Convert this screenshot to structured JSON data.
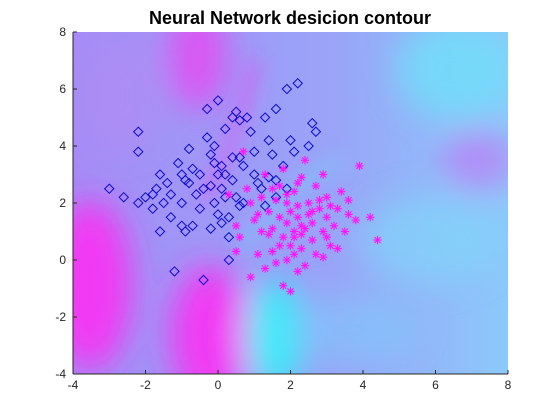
{
  "chart_data": {
    "type": "scatter",
    "title": "Neural Network desicion contour",
    "xlabel": "",
    "ylabel": "",
    "xlim": [
      -4,
      8
    ],
    "ylim": [
      -4,
      8
    ],
    "xticks": [
      "-4",
      "-2",
      "0",
      "2",
      "4",
      "6",
      "8"
    ],
    "yticks": [
      "-4",
      "-2",
      "0",
      "2",
      "4",
      "6",
      "8"
    ],
    "grid": false,
    "legend": "none",
    "background": "decision contour shaded from magenta to cyan",
    "colors": {
      "class_a": "#0b0bd0",
      "class_b": "#ff14ff",
      "contour_magenta": "#ff2cf2",
      "contour_violet": "#9d8cf7",
      "contour_cyan": "#33f0f8"
    },
    "series": [
      {
        "marker": "diamond",
        "color": "#0b0bd0",
        "points": [
          [
            -3.0,
            2.5
          ],
          [
            -2.6,
            2.2
          ],
          [
            -2.2,
            4.5
          ],
          [
            -2.2,
            3.8
          ],
          [
            -2.2,
            2.0
          ],
          [
            -2.0,
            2.2
          ],
          [
            -1.8,
            2.3
          ],
          [
            -1.8,
            1.8
          ],
          [
            -1.7,
            2.5
          ],
          [
            -1.6,
            1.0
          ],
          [
            -1.5,
            2.0
          ],
          [
            -1.4,
            2.7
          ],
          [
            -1.3,
            2.3
          ],
          [
            -1.3,
            1.5
          ],
          [
            -1.2,
            -0.4
          ],
          [
            -1.1,
            3.4
          ],
          [
            -1.0,
            3.0
          ],
          [
            -1.0,
            2.0
          ],
          [
            -1.0,
            1.2
          ],
          [
            -0.9,
            2.8
          ],
          [
            -0.9,
            1.0
          ],
          [
            -0.8,
            3.9
          ],
          [
            -0.8,
            2.7
          ],
          [
            -0.7,
            3.2
          ],
          [
            -0.7,
            1.2
          ],
          [
            -0.6,
            2.3
          ],
          [
            -0.5,
            3.0
          ],
          [
            -0.5,
            1.8
          ],
          [
            -0.4,
            -0.7
          ],
          [
            -0.3,
            5.3
          ],
          [
            -0.3,
            4.3
          ],
          [
            -0.2,
            3.7
          ],
          [
            -0.2,
            2.6
          ],
          [
            -0.2,
            1.1
          ],
          [
            -0.1,
            4.0
          ],
          [
            -0.1,
            3.4
          ],
          [
            -0.1,
            2.0
          ],
          [
            0.0,
            5.6
          ],
          [
            0.0,
            3.0
          ],
          [
            0.0,
            1.6
          ],
          [
            0.1,
            3.3
          ],
          [
            0.1,
            2.5
          ],
          [
            0.1,
            1.3
          ],
          [
            0.2,
            4.6
          ],
          [
            0.2,
            3.0
          ],
          [
            0.2,
            2.2
          ],
          [
            0.3,
            0.8
          ],
          [
            0.3,
            0.0
          ],
          [
            0.4,
            5.0
          ],
          [
            0.4,
            3.6
          ],
          [
            0.4,
            2.8
          ],
          [
            0.5,
            2.2
          ],
          [
            0.6,
            4.9
          ],
          [
            0.6,
            3.6
          ],
          [
            0.6,
            1.9
          ],
          [
            0.7,
            3.3
          ],
          [
            0.8,
            5.0
          ],
          [
            0.9,
            4.5
          ],
          [
            1.0,
            3.8
          ],
          [
            1.1,
            2.7
          ],
          [
            1.2,
            2.5
          ],
          [
            1.3,
            1.9
          ],
          [
            1.4,
            2.9
          ],
          [
            1.5,
            3.7
          ],
          [
            1.6,
            2.2
          ],
          [
            1.8,
            3.3
          ],
          [
            1.9,
            2.5
          ],
          [
            2.0,
            4.2
          ],
          [
            2.1,
            3.8
          ],
          [
            2.2,
            6.2
          ],
          [
            2.5,
            4.0
          ],
          [
            2.6,
            4.8
          ],
          [
            2.7,
            4.5
          ],
          [
            1.6,
            2.8
          ],
          [
            0.5,
            5.2
          ],
          [
            -1.6,
            3.0
          ],
          [
            0.7,
            2.0
          ],
          [
            1.0,
            3.0
          ],
          [
            1.9,
            6.0
          ],
          [
            1.4,
            4.2
          ],
          [
            0.3,
            1.5
          ],
          [
            1.3,
            5.0
          ],
          [
            -0.4,
            2.5
          ],
          [
            1.6,
            5.3
          ]
        ]
      },
      {
        "marker": "asterisk",
        "color": "#ff14ff",
        "points": [
          [
            0.3,
            2.3
          ],
          [
            0.5,
            1.2
          ],
          [
            0.5,
            0.3
          ],
          [
            0.6,
            0.8
          ],
          [
            0.7,
            3.8
          ],
          [
            0.8,
            2.5
          ],
          [
            0.9,
            2.0
          ],
          [
            0.9,
            -0.6
          ],
          [
            1.0,
            1.4
          ],
          [
            1.1,
            0.2
          ],
          [
            1.2,
            1.0
          ],
          [
            1.2,
            2.2
          ],
          [
            1.3,
            3.0
          ],
          [
            1.3,
            -0.3
          ],
          [
            1.4,
            1.7
          ],
          [
            1.5,
            1.1
          ],
          [
            1.5,
            0.3
          ],
          [
            1.6,
            2.1
          ],
          [
            1.6,
            -0.1
          ],
          [
            1.7,
            1.5
          ],
          [
            1.7,
            2.6
          ],
          [
            1.8,
            0.8
          ],
          [
            1.8,
            3.2
          ],
          [
            1.9,
            0.0
          ],
          [
            1.9,
            1.3
          ],
          [
            1.9,
            2.0
          ],
          [
            2.0,
            1.7
          ],
          [
            2.0,
            0.5
          ],
          [
            2.0,
            -1.1
          ],
          [
            2.1,
            1.0
          ],
          [
            2.1,
            2.4
          ],
          [
            2.1,
            0.2
          ],
          [
            2.2,
            1.5
          ],
          [
            2.2,
            1.9
          ],
          [
            2.2,
            2.7
          ],
          [
            2.2,
            -0.4
          ],
          [
            2.3,
            0.9
          ],
          [
            2.3,
            0.4
          ],
          [
            2.3,
            1.2
          ],
          [
            2.4,
            3.5
          ],
          [
            2.5,
            1.6
          ],
          [
            2.5,
            2.0
          ],
          [
            2.6,
            0.7
          ],
          [
            2.6,
            1.3
          ],
          [
            2.7,
            2.6
          ],
          [
            2.7,
            0.2
          ],
          [
            2.8,
            1.8
          ],
          [
            2.9,
            1.0
          ],
          [
            2.9,
            3.0
          ],
          [
            3.0,
            1.5
          ],
          [
            3.0,
            2.2
          ],
          [
            3.1,
            0.5
          ],
          [
            3.2,
            1.2
          ],
          [
            3.3,
            1.8
          ],
          [
            3.4,
            2.4
          ],
          [
            3.5,
            1.0
          ],
          [
            3.6,
            1.6
          ],
          [
            3.8,
            1.4
          ],
          [
            3.9,
            3.3
          ],
          [
            4.2,
            1.5
          ],
          [
            4.4,
            0.7
          ],
          [
            2.4,
            1.1
          ],
          [
            1.8,
            -0.9
          ],
          [
            2.9,
            0.1
          ],
          [
            1.5,
            2.5
          ],
          [
            2.3,
            2.9
          ],
          [
            3.0,
            0.8
          ],
          [
            1.7,
            0.5
          ],
          [
            3.3,
            0.4
          ],
          [
            2.6,
            1.7
          ],
          [
            1.9,
            2.3
          ],
          [
            2.8,
            2.1
          ],
          [
            2.1,
            0.8
          ],
          [
            1.1,
            1.6
          ],
          [
            3.6,
            2.1
          ],
          [
            2.4,
            -0.2
          ],
          [
            1.4,
            0.9
          ],
          [
            3.1,
            1.9
          ]
        ]
      }
    ]
  }
}
